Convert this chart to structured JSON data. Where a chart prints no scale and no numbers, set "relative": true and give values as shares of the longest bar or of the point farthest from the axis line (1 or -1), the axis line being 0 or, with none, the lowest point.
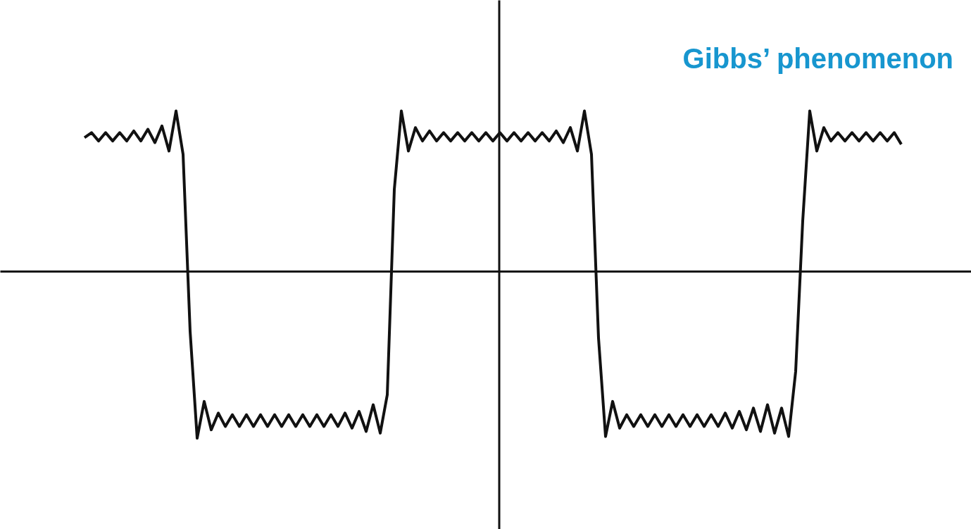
{
  "chart_data": {
    "type": "line",
    "relative": true,
    "annotations": [
      "Gibbs’ phenomenon"
    ],
    "categories": [
      null,
      null,
      null,
      null,
      null,
      null,
      null,
      null,
      null,
      null,
      null,
      null,
      null,
      null,
      null,
      null,
      null,
      null,
      null,
      null,
      null,
      null,
      null,
      null,
      null,
      null,
      null,
      null,
      null,
      null,
      null,
      null,
      null,
      null,
      null,
      null,
      null,
      null,
      null,
      null,
      null,
      null,
      null,
      null,
      null,
      null,
      null,
      null,
      null,
      null,
      null,
      null,
      null,
      null,
      null,
      null,
      null,
      null,
      null,
      null,
      null,
      null,
      null,
      null,
      null,
      null,
      null,
      null,
      null,
      null,
      null,
      null,
      null,
      null,
      null,
      null,
      null,
      null,
      null,
      null,
      null,
      null,
      null,
      null,
      null,
      null,
      null,
      null,
      null,
      null,
      null,
      null,
      null,
      null,
      null,
      null,
      null,
      null,
      null,
      null,
      null,
      null,
      null,
      null,
      null,
      null,
      null,
      null,
      null,
      null,
      null,
      null,
      null,
      null,
      null,
      null,
      null
    ],
    "series": [
      {
        "color": "#111111",
        "values": [
          0.8,
          0.83,
          0.78,
          0.83,
          0.78,
          0.83,
          0.78,
          0.84,
          0.78,
          0.85,
          0.77,
          0.87,
          0.72,
          0.96,
          0.7,
          -0.36,
          -1,
          -0.78,
          -0.95,
          -0.85,
          -0.93,
          -0.86,
          -0.93,
          -0.86,
          -0.93,
          -0.86,
          -0.93,
          -0.86,
          -0.93,
          -0.86,
          -0.93,
          -0.86,
          -0.93,
          -0.86,
          -0.93,
          -0.86,
          -0.93,
          -0.85,
          -0.94,
          -0.84,
          -0.96,
          -0.8,
          -0.97,
          -0.74,
          0.49,
          0.96,
          0.72,
          0.86,
          0.78,
          0.84,
          0.78,
          0.83,
          0.78,
          0.83,
          0.78,
          0.83,
          0.78,
          0.83,
          0.78,
          0.83,
          0.78,
          0.83,
          0.78,
          0.83,
          0.78,
          0.83,
          0.78,
          0.84,
          0.77,
          0.86,
          0.72,
          0.96,
          0.7,
          -0.4,
          -0.99,
          -0.78,
          -0.94,
          -0.86,
          -0.93,
          -0.86,
          -0.93,
          -0.86,
          -0.93,
          -0.86,
          -0.93,
          -0.86,
          -0.93,
          -0.86,
          -0.93,
          -0.86,
          -0.93,
          -0.85,
          -0.94,
          -0.84,
          -0.95,
          -0.82,
          -0.96,
          -0.8,
          -0.97,
          -0.82,
          -0.99,
          -0.6,
          0.3,
          0.96,
          0.72,
          0.86,
          0.78,
          0.83,
          0.78,
          0.83,
          0.78,
          0.83,
          0.78,
          0.83,
          0.78,
          0.83,
          0.76
        ]
      }
    ]
  }
}
